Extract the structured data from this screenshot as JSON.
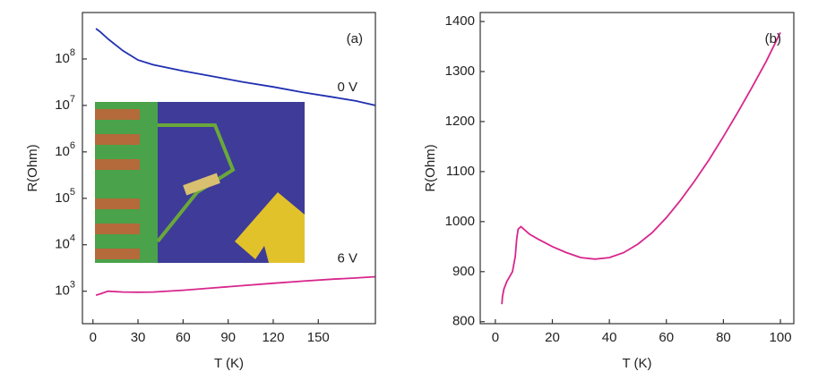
{
  "chart_data": [
    {
      "type": "line",
      "log_y": true,
      "annotation": "(a)",
      "xlabel": "T (K)",
      "ylabel": "R(Ohm)",
      "x": [
        2,
        5,
        10,
        20,
        30,
        40,
        60,
        80,
        100,
        120,
        140,
        160,
        175,
        188
      ],
      "series": [
        {
          "name": "0 V",
          "color": "#1f2fb0",
          "values": [
            450000000,
            380000000,
            270000000,
            150000000,
            95000000,
            75000000,
            55000000,
            42000000,
            32000000,
            25000000,
            19000000,
            15000000,
            12500000,
            10000000
          ]
        },
        {
          "name": "6 V",
          "color": "#d8268c",
          "values": [
            820,
            880,
            1000,
            960,
            950,
            960,
            1050,
            1180,
            1320,
            1480,
            1650,
            1820,
            1930,
            2050
          ]
        }
      ],
      "xlim": [
        -7,
        188
      ],
      "xticks": [
        0,
        30,
        60,
        90,
        120,
        150
      ],
      "ylim": [
        200,
        1000000000
      ],
      "yticks": [
        {
          "value": 1000,
          "label": "10^3"
        },
        {
          "value": 10000,
          "label": "10^4"
        },
        {
          "value": 100000,
          "label": "10^5"
        },
        {
          "value": 1000000,
          "label": "10^6"
        },
        {
          "value": 10000000,
          "label": "10^7"
        },
        {
          "value": 100000000,
          "label": "10^8"
        }
      ]
    },
    {
      "type": "line",
      "log_y": false,
      "annotation": "(b)",
      "xlabel": "T (K)",
      "ylabel": "R(Ohm)",
      "x": [
        2.3,
        2.5,
        3,
        4,
        5,
        6,
        7,
        7.5,
        8,
        9,
        10,
        12,
        15,
        20,
        25,
        30,
        35,
        40,
        45,
        50,
        55,
        60,
        65,
        70,
        75,
        80,
        85,
        90,
        95,
        100
      ],
      "series": [
        {
          "name": null,
          "color": "#d8268c",
          "values": [
            835,
            850,
            865,
            880,
            890,
            900,
            930,
            965,
            985,
            990,
            985,
            975,
            965,
            950,
            938,
            928,
            925,
            928,
            938,
            955,
            978,
            1008,
            1043,
            1082,
            1124,
            1170,
            1218,
            1268,
            1320,
            1378
          ]
        }
      ],
      "xlim": [
        -5.3,
        104.7
      ],
      "xticks": [
        0,
        20,
        40,
        60,
        80,
        100
      ],
      "ylim": [
        796,
        1418
      ],
      "yticks": [
        800,
        900,
        1000,
        1100,
        1200,
        1300,
        1400
      ]
    }
  ]
}
